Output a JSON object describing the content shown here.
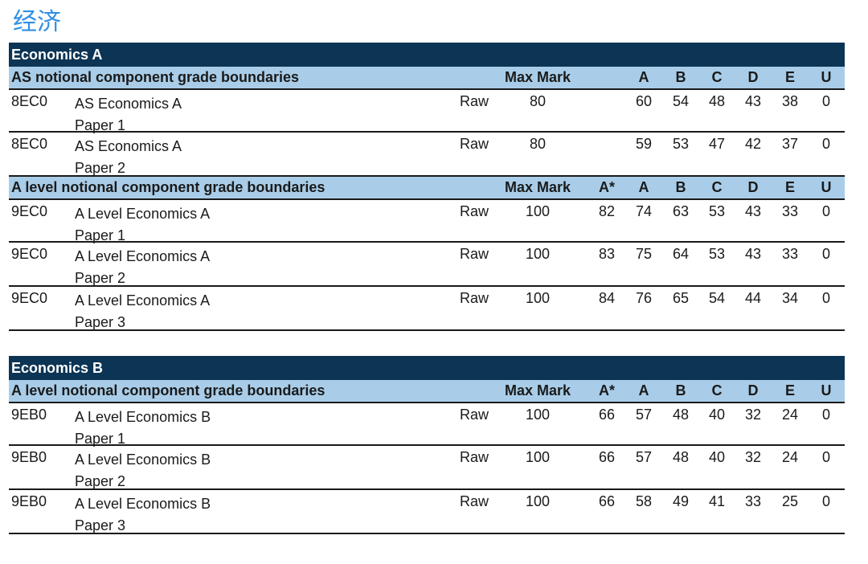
{
  "page_title": "经济",
  "tables": [
    {
      "subject": "Economics A",
      "sections": [
        {
          "title": "AS notional component grade boundaries",
          "max_mark_label": "Max Mark",
          "grade_headers": [
            "",
            "A",
            "B",
            "C",
            "D",
            "E",
            "U"
          ],
          "rows": [
            {
              "code": "8EC0",
              "name_line1": "AS Economics A",
              "name_line2": "Paper 1",
              "type": "Raw",
              "max": "80",
              "grades": [
                "",
                "60",
                "54",
                "48",
                "43",
                "38",
                "0"
              ]
            },
            {
              "code": "8EC0",
              "name_line1": "AS Economics A",
              "name_line2": "Paper 2",
              "type": "Raw",
              "max": "80",
              "grades": [
                "",
                "59",
                "53",
                "47",
                "42",
                "37",
                "0"
              ]
            }
          ]
        },
        {
          "title": "A level notional component grade boundaries",
          "max_mark_label": "Max Mark",
          "grade_headers": [
            "A*",
            "A",
            "B",
            "C",
            "D",
            "E",
            "U"
          ],
          "rows": [
            {
              "code": "9EC0",
              "name_line1": "A Level Economics A",
              "name_line2": "Paper 1",
              "type": "Raw",
              "max": "100",
              "grades": [
                "82",
                "74",
                "63",
                "53",
                "43",
                "33",
                "0"
              ]
            },
            {
              "code": "9EC0",
              "name_line1": "A Level Economics A",
              "name_line2": "Paper 2",
              "type": "Raw",
              "max": "100",
              "grades": [
                "83",
                "75",
                "64",
                "53",
                "43",
                "33",
                "0"
              ]
            },
            {
              "code": "9EC0",
              "name_line1": "A Level Economics A",
              "name_line2": "Paper 3",
              "type": "Raw",
              "max": "100",
              "grades": [
                "84",
                "76",
                "65",
                "54",
                "44",
                "34",
                "0"
              ]
            }
          ]
        }
      ]
    },
    {
      "subject": "Economics B",
      "sections": [
        {
          "title": "A level notional component grade boundaries",
          "max_mark_label": "Max Mark",
          "grade_headers": [
            "A*",
            "A",
            "B",
            "C",
            "D",
            "E",
            "U"
          ],
          "rows": [
            {
              "code": "9EB0",
              "name_line1": "A Level Economics B",
              "name_line2": "Paper 1",
              "type": "Raw",
              "max": "100",
              "grades": [
                "66",
                "57",
                "48",
                "40",
                "32",
                "24",
                "0"
              ]
            },
            {
              "code": "9EB0",
              "name_line1": "A Level Economics B",
              "name_line2": "Paper 2",
              "type": "Raw",
              "max": "100",
              "grades": [
                "66",
                "57",
                "48",
                "40",
                "32",
                "24",
                "0"
              ]
            },
            {
              "code": "9EB0",
              "name_line1": "A Level Economics B",
              "name_line2": "Paper 3",
              "type": "Raw",
              "max": "100",
              "grades": [
                "66",
                "58",
                "49",
                "41",
                "33",
                "25",
                "0"
              ]
            }
          ]
        }
      ]
    }
  ],
  "colors": {
    "subject_bar": "#0c3454",
    "section_header": "#a9cde8",
    "page_title": "#2f8fe3"
  }
}
